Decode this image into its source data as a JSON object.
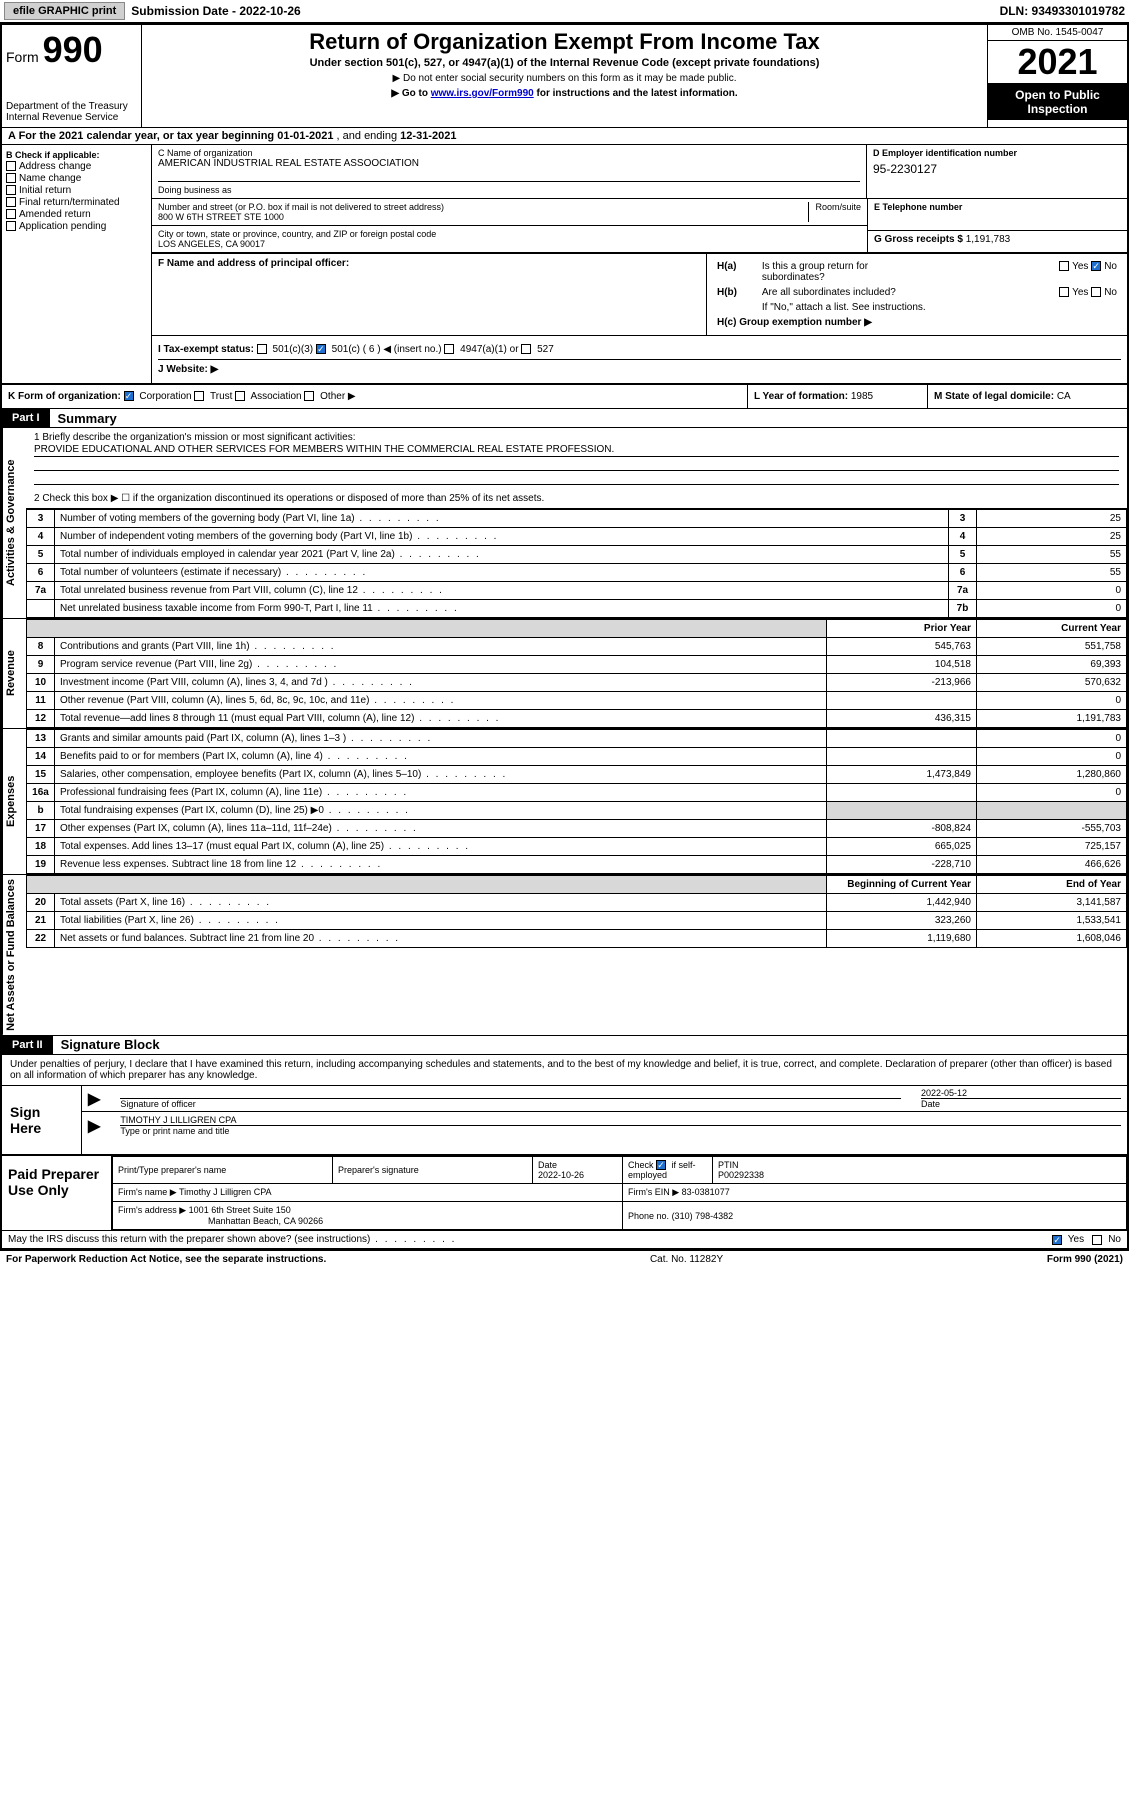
{
  "top_bar": {
    "efile_label": "efile GRAPHIC print",
    "submission_label": "Submission Date - 2022-10-26",
    "dln_label": "DLN: 93493301019782"
  },
  "header": {
    "form_label": "Form",
    "form_number": "990",
    "dept1": "Department of the Treasury",
    "dept2": "Internal Revenue Service",
    "title": "Return of Organization Exempt From Income Tax",
    "sub1": "Under section 501(c), 527, or 4947(a)(1) of the Internal Revenue Code (except private foundations)",
    "sub2": "▶ Do not enter social security numbers on this form as it may be made public.",
    "sub3a": "▶ Go to ",
    "sub3_link": "www.irs.gov/Form990",
    "sub3b": " for instructions and the latest information.",
    "omb": "OMB No. 1545-0047",
    "year": "2021",
    "open_public1": "Open to Public",
    "open_public2": "Inspection"
  },
  "row_a": {
    "prefix": "A For the 2021 calendar year, or tax year beginning ",
    "begin": "01-01-2021",
    "mid": " , and ending ",
    "end": "12-31-2021"
  },
  "col_b": {
    "header": "B Check if applicable:",
    "items": [
      "Address change",
      "Name change",
      "Initial return",
      "Final return/terminated",
      "Amended return",
      "Application pending"
    ]
  },
  "box_c": {
    "label": "C Name of organization",
    "value": "AMERICAN INDUSTRIAL REAL ESTATE ASSOOCIATION",
    "dba_label": "Doing business as",
    "dba_value": "",
    "street_label": "Number and street (or P.O. box if mail is not delivered to street address)",
    "room_label": "Room/suite",
    "street_value": "800 W 6TH STREET STE 1000",
    "city_label": "City or town, state or province, country, and ZIP or foreign postal code",
    "city_value": "LOS ANGELES, CA  90017"
  },
  "box_d": {
    "label": "D Employer identification number",
    "value": "95-2230127"
  },
  "box_e": {
    "label": "E Telephone number",
    "value": ""
  },
  "box_g": {
    "label": "G Gross receipts $",
    "value": "1,191,783"
  },
  "box_f": {
    "label": "F Name and address of principal officer:",
    "value": ""
  },
  "box_h": {
    "ha_label": "H(a)  Is this a group return for subordinates?",
    "hb_label": "H(b)  Are all subordinates included?",
    "hb_note": "If \"No,\" attach a list. See instructions.",
    "hc_label": "H(c)  Group exemption number ▶",
    "yes": "Yes",
    "no": "No"
  },
  "box_i": {
    "label": "I  Tax-exempt status:",
    "opts": [
      "501(c)(3)",
      "501(c) ( 6 ) ◀ (insert no.)",
      "4947(a)(1) or",
      "527"
    ]
  },
  "box_j": {
    "label": "J  Website: ▶",
    "value": ""
  },
  "box_k": {
    "label": "K Form of organization:",
    "opts": [
      "Corporation",
      "Trust",
      "Association",
      "Other ▶"
    ]
  },
  "box_l": {
    "label": "L Year of formation:",
    "value": "1985"
  },
  "box_m": {
    "label": "M State of legal domicile:",
    "value": "CA"
  },
  "part1": {
    "header": "Part I",
    "title": "Summary"
  },
  "side_labels": {
    "gov": "Activities & Governance",
    "rev": "Revenue",
    "exp": "Expenses",
    "net": "Net Assets or Fund Balances"
  },
  "mission": {
    "q1": "1  Briefly describe the organization's mission or most significant activities:",
    "ans": "PROVIDE EDUCATIONAL AND OTHER SERVICES FOR MEMBERS WITHIN THE COMMERCIAL REAL ESTATE PROFESSION.",
    "q2": "2  Check this box ▶ ☐ if the organization discontinued its operations or disposed of more than 25% of its net assets."
  },
  "gov_lines": [
    {
      "n": "3",
      "desc": "Number of voting members of the governing body (Part VI, line 1a)",
      "key": "3",
      "val": "25"
    },
    {
      "n": "4",
      "desc": "Number of independent voting members of the governing body (Part VI, line 1b)",
      "key": "4",
      "val": "25"
    },
    {
      "n": "5",
      "desc": "Total number of individuals employed in calendar year 2021 (Part V, line 2a)",
      "key": "5",
      "val": "55"
    },
    {
      "n": "6",
      "desc": "Total number of volunteers (estimate if necessary)",
      "key": "6",
      "val": "55"
    },
    {
      "n": "7a",
      "desc": "Total unrelated business revenue from Part VIII, column (C), line 12",
      "key": "7a",
      "val": "0"
    },
    {
      "n": "",
      "desc": "Net unrelated business taxable income from Form 990-T, Part I, line 11",
      "key": "7b",
      "val": "0"
    }
  ],
  "col_headers": {
    "prior": "Prior Year",
    "current": "Current Year",
    "boy": "Beginning of Current Year",
    "eoy": "End of Year"
  },
  "rev_lines": [
    {
      "n": "8",
      "desc": "Contributions and grants (Part VIII, line 1h)",
      "py": "545,763",
      "cy": "551,758"
    },
    {
      "n": "9",
      "desc": "Program service revenue (Part VIII, line 2g)",
      "py": "104,518",
      "cy": "69,393"
    },
    {
      "n": "10",
      "desc": "Investment income (Part VIII, column (A), lines 3, 4, and 7d )",
      "py": "-213,966",
      "cy": "570,632"
    },
    {
      "n": "11",
      "desc": "Other revenue (Part VIII, column (A), lines 5, 6d, 8c, 9c, 10c, and 11e)",
      "py": "",
      "cy": "0"
    },
    {
      "n": "12",
      "desc": "Total revenue—add lines 8 through 11 (must equal Part VIII, column (A), line 12)",
      "py": "436,315",
      "cy": "1,191,783"
    }
  ],
  "exp_lines": [
    {
      "n": "13",
      "desc": "Grants and similar amounts paid (Part IX, column (A), lines 1–3 )",
      "py": "",
      "cy": "0"
    },
    {
      "n": "14",
      "desc": "Benefits paid to or for members (Part IX, column (A), line 4)",
      "py": "",
      "cy": "0"
    },
    {
      "n": "15",
      "desc": "Salaries, other compensation, employee benefits (Part IX, column (A), lines 5–10)",
      "py": "1,473,849",
      "cy": "1,280,860"
    },
    {
      "n": "16a",
      "desc": "Professional fundraising fees (Part IX, column (A), line 11e)",
      "py": "",
      "cy": "0"
    },
    {
      "n": "b",
      "desc": "Total fundraising expenses (Part IX, column (D), line 25) ▶0",
      "py": "SHADE",
      "cy": "SHADE"
    },
    {
      "n": "17",
      "desc": "Other expenses (Part IX, column (A), lines 11a–11d, 11f–24e)",
      "py": "-808,824",
      "cy": "-555,703"
    },
    {
      "n": "18",
      "desc": "Total expenses. Add lines 13–17 (must equal Part IX, column (A), line 25)",
      "py": "665,025",
      "cy": "725,157"
    },
    {
      "n": "19",
      "desc": "Revenue less expenses. Subtract line 18 from line 12",
      "py": "-228,710",
      "cy": "466,626"
    }
  ],
  "net_lines": [
    {
      "n": "20",
      "desc": "Total assets (Part X, line 16)",
      "py": "1,442,940",
      "cy": "3,141,587"
    },
    {
      "n": "21",
      "desc": "Total liabilities (Part X, line 26)",
      "py": "323,260",
      "cy": "1,533,541"
    },
    {
      "n": "22",
      "desc": "Net assets or fund balances. Subtract line 21 from line 20",
      "py": "1,119,680",
      "cy": "1,608,046"
    }
  ],
  "part2": {
    "header": "Part II",
    "title": "Signature Block"
  },
  "sig_text": "Under penalties of perjury, I declare that I have examined this return, including accompanying schedules and statements, and to the best of my knowledge and belief, it is true, correct, and complete. Declaration of preparer (other than officer) is based on all information of which preparer has any knowledge.",
  "sign": {
    "here": "Sign Here",
    "sig_officer": "Signature of officer",
    "date_label": "Date",
    "date_value": "2022-05-12",
    "name_value": "TIMOTHY J LILLIGREN  CPA",
    "name_label": "Type or print name and title"
  },
  "paid": {
    "title": "Paid Preparer Use Only",
    "h1": "Print/Type preparer's name",
    "h2": "Preparer's signature",
    "h3": "Date",
    "h3v": "2022-10-26",
    "h4a": "Check",
    "h4b": "if self-employed",
    "h5": "PTIN",
    "h5v": "P00292338",
    "firm_name_label": "Firm's name    ▶",
    "firm_name": "Timothy J Lilligren CPA",
    "firm_ein_label": "Firm's EIN ▶",
    "firm_ein": "83-0381077",
    "firm_addr_label": "Firm's address ▶",
    "firm_addr1": "1001 6th Street Suite 150",
    "firm_addr2": "Manhattan Beach, CA  90266",
    "phone_label": "Phone no.",
    "phone": "(310) 798-4382"
  },
  "footer": {
    "discuss": "May the IRS discuss this return with the preparer shown above? (see instructions)",
    "yes": "Yes",
    "no": "No",
    "paperwork": "For Paperwork Reduction Act Notice, see the separate instructions.",
    "cat": "Cat. No. 11282Y",
    "form": "Form 990 (2021)"
  },
  "colors": {
    "black": "#000000",
    "white": "#ffffff",
    "grey_btn": "#d0d0d0",
    "shade": "#d8d8d8",
    "link": "#0000cc",
    "check_blue": "#2070d0"
  }
}
